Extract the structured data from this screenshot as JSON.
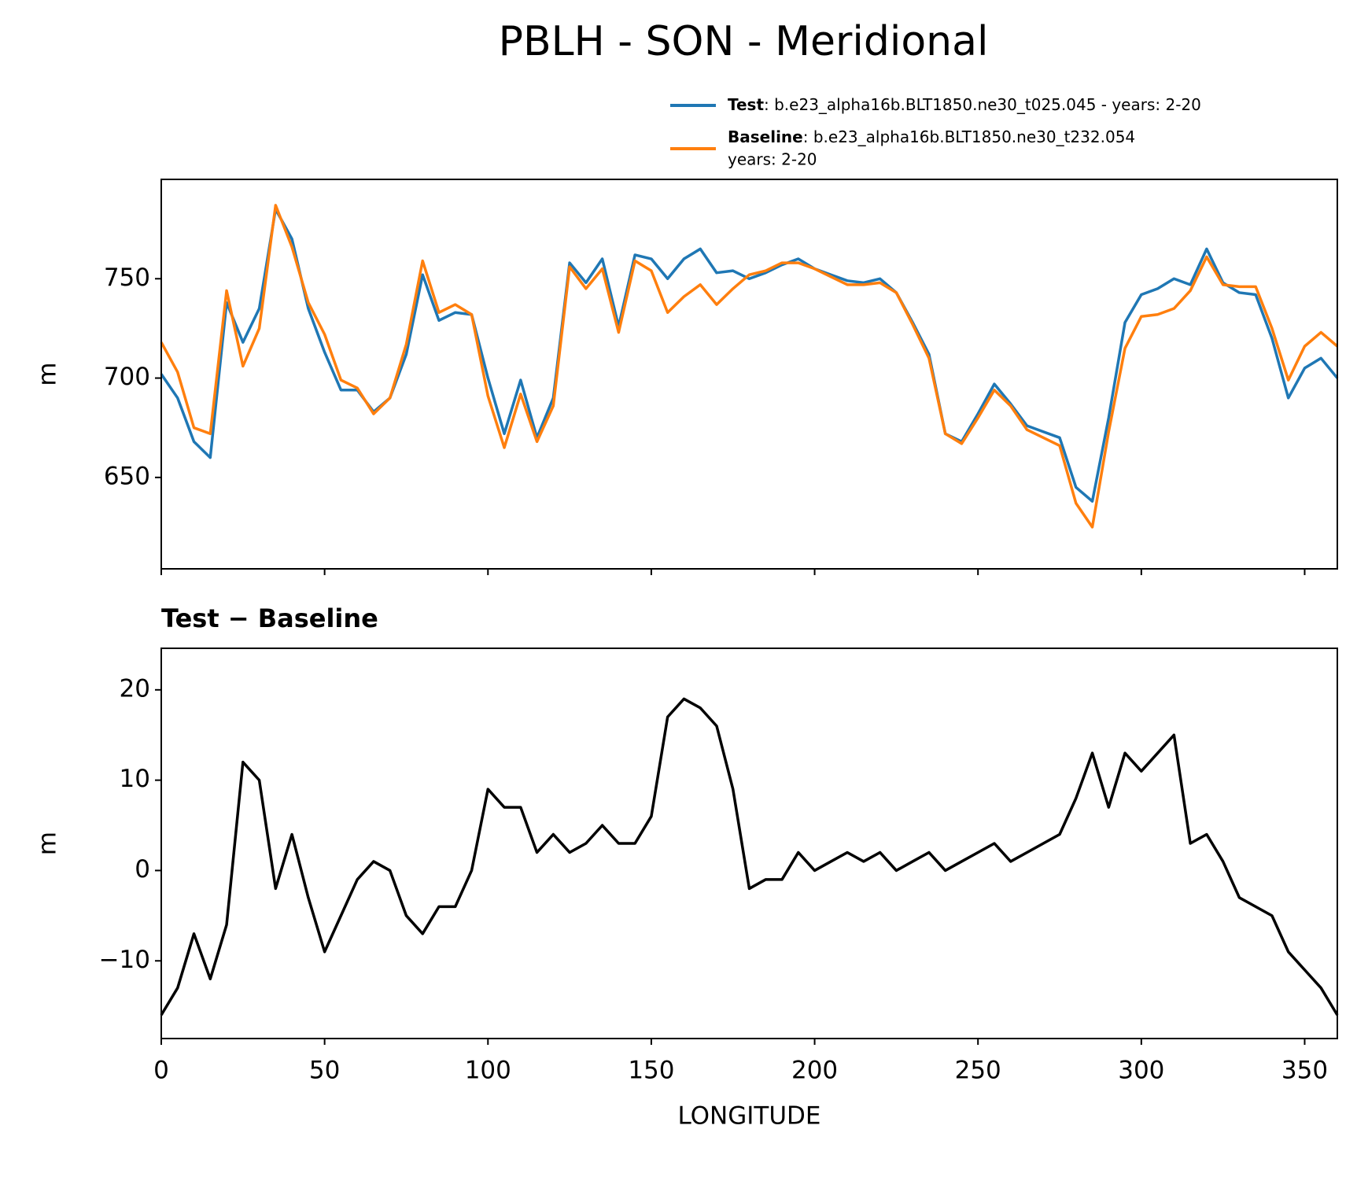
{
  "title": "PBLH - SON - Meridional",
  "chart_data": [
    {
      "type": "line",
      "ylabel": "m",
      "x": [
        0,
        5,
        10,
        15,
        20,
        25,
        30,
        35,
        40,
        45,
        50,
        55,
        60,
        65,
        70,
        75,
        80,
        85,
        90,
        95,
        100,
        105,
        110,
        115,
        120,
        125,
        130,
        135,
        140,
        145,
        150,
        155,
        160,
        165,
        170,
        175,
        180,
        185,
        190,
        195,
        200,
        205,
        210,
        215,
        220,
        225,
        230,
        235,
        240,
        245,
        250,
        255,
        260,
        265,
        270,
        275,
        280,
        285,
        290,
        295,
        300,
        305,
        310,
        315,
        320,
        325,
        330,
        335,
        340,
        345,
        350,
        355,
        360
      ],
      "series": [
        {
          "name": "Test",
          "label_lines": [
            ": b.e23_alpha16b.BLT1850.ne30_t025.045 - years: 2-20"
          ],
          "color": "#1f77b4",
          "values": [
            702,
            690,
            668,
            660,
            738,
            718,
            735,
            785,
            770,
            735,
            713,
            694,
            694,
            683,
            690,
            712,
            752,
            729,
            733,
            732,
            700,
            672,
            699,
            670,
            690,
            758,
            748,
            760,
            726,
            762,
            760,
            750,
            760,
            765,
            753,
            754,
            750,
            753,
            757,
            760,
            755,
            752,
            749,
            748,
            750,
            743,
            728,
            712,
            672,
            668,
            682,
            697,
            687,
            676,
            673,
            670,
            645,
            638,
            680,
            728,
            742,
            745,
            750,
            747,
            765,
            748,
            743,
            742,
            720,
            690,
            705,
            710,
            700
          ]
        },
        {
          "name": "Baseline",
          "label_lines": [
            ": b.e23_alpha16b.BLT1850.ne30_t232.054",
            "years: 2-20"
          ],
          "color": "#ff7f0e",
          "values": [
            718,
            703,
            675,
            672,
            744,
            706,
            725,
            787,
            766,
            738,
            722,
            699,
            695,
            682,
            690,
            717,
            759,
            733,
            737,
            732,
            691,
            665,
            692,
            668,
            686,
            756,
            745,
            755,
            723,
            759,
            754,
            733,
            741,
            747,
            737,
            745,
            752,
            754,
            758,
            758,
            755,
            751,
            747,
            747,
            748,
            743,
            727,
            710,
            672,
            667,
            680,
            694,
            686,
            674,
            670,
            666,
            637,
            625,
            673,
            715,
            731,
            732,
            735,
            744,
            761,
            747,
            746,
            746,
            725,
            699,
            716,
            723,
            716
          ]
        }
      ],
      "xlim": [
        0,
        360
      ],
      "xticks": [
        0,
        50,
        100,
        150,
        200,
        250,
        300,
        350
      ],
      "ylim": [
        604,
        800
      ],
      "yticks": [
        650,
        700,
        750
      ]
    },
    {
      "type": "line",
      "subtitle": "Test − Baseline",
      "xlabel": "LONGITUDE",
      "ylabel": "m",
      "x": [
        0,
        5,
        10,
        15,
        20,
        25,
        30,
        35,
        40,
        45,
        50,
        55,
        60,
        65,
        70,
        75,
        80,
        85,
        90,
        95,
        100,
        105,
        110,
        115,
        120,
        125,
        130,
        135,
        140,
        145,
        150,
        155,
        160,
        165,
        170,
        175,
        180,
        185,
        190,
        195,
        200,
        205,
        210,
        215,
        220,
        225,
        230,
        235,
        240,
        245,
        250,
        255,
        260,
        265,
        270,
        275,
        280,
        285,
        290,
        295,
        300,
        305,
        310,
        315,
        320,
        325,
        330,
        335,
        340,
        345,
        350,
        355,
        360
      ],
      "series": [
        {
          "color": "#000000",
          "values": [
            -16,
            -13,
            -7,
            -12,
            -6,
            12,
            10,
            -2,
            4,
            -3,
            -9,
            -5,
            -1,
            1,
            0,
            -5,
            -7,
            -4,
            -4,
            0,
            9,
            7,
            7,
            2,
            4,
            2,
            3,
            5,
            3,
            3,
            6,
            17,
            19,
            18,
            16,
            9,
            -2,
            -1,
            -1,
            2,
            0,
            1,
            2,
            1,
            2,
            0,
            1,
            2,
            0,
            1,
            2,
            3,
            1,
            2,
            3,
            4,
            8,
            13,
            7,
            13,
            11,
            13,
            15,
            3,
            4,
            1,
            -3,
            -4,
            -5,
            -9,
            -11,
            -13,
            -16
          ]
        }
      ],
      "xlim": [
        0,
        360
      ],
      "xticks": [
        0,
        50,
        100,
        150,
        200,
        250,
        300,
        350
      ],
      "ylim": [
        -18.6,
        24.6
      ],
      "yticks": [
        {
          "value": -10,
          "label": "−10"
        },
        0,
        10,
        20
      ]
    }
  ]
}
